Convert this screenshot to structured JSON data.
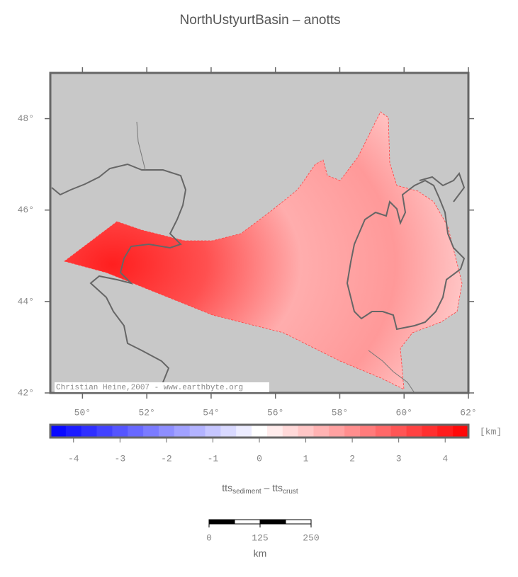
{
  "map": {
    "title": "NorthUstyurtBasin – anotts",
    "credit": "Christian Heine,2007 - www.earthbyte.org",
    "xlim": [
      49,
      62
    ],
    "ylim": [
      42,
      49
    ],
    "xticks": [
      {
        "value": 50,
        "label": "50°"
      },
      {
        "value": 52,
        "label": "52°"
      },
      {
        "value": 54,
        "label": "54°"
      },
      {
        "value": 56,
        "label": "56°"
      },
      {
        "value": 58,
        "label": "58°"
      },
      {
        "value": 60,
        "label": "60°"
      },
      {
        "value": 62,
        "label": "62°"
      }
    ],
    "yticks": [
      {
        "value": 42,
        "label": "42°"
      },
      {
        "value": 44,
        "label": "44°"
      },
      {
        "value": 46,
        "label": "46°"
      },
      {
        "value": 48,
        "label": "48°"
      }
    ],
    "colorbar": {
      "lim": [
        -4.5,
        4.5
      ],
      "ticks": [
        -4,
        -3,
        -2,
        -1,
        0,
        1,
        2,
        3,
        4
      ],
      "unit": "[km]",
      "label": [
        "tts",
        "sediment",
        " – tts",
        "crust"
      ]
    },
    "scalebar": {
      "lim": [
        0,
        250
      ],
      "ticks": [
        0,
        125,
        250
      ],
      "unit": "km"
    }
  }
}
